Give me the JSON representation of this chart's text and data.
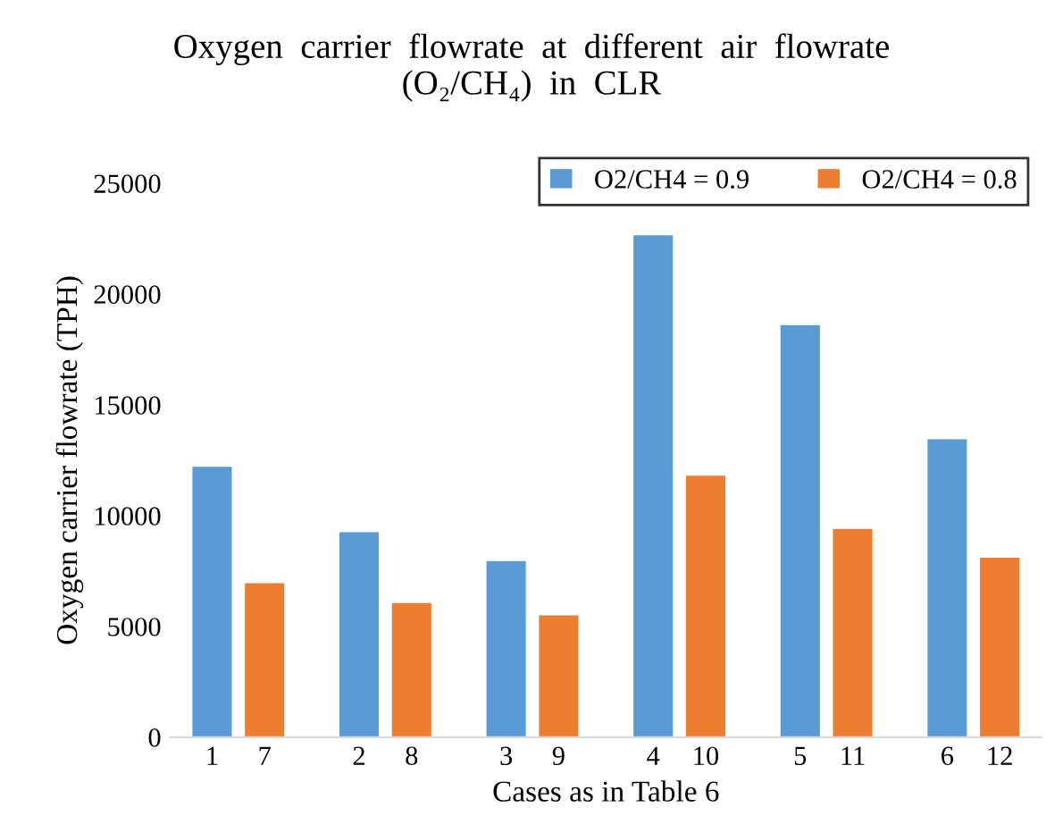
{
  "chart_data": {
    "type": "bar",
    "title": "Oxygen  carrier  flowrate  at  different  air  flowrate\n(O₂/CH₄)  in  CLR",
    "xlabel": "Cases as in Table 6",
    "ylabel": "Oxygen carrier flowrate (TPH)",
    "categories": [
      "1",
      "7",
      "2",
      "8",
      "3",
      "9",
      "4",
      "10",
      "5",
      "11",
      "6",
      "12"
    ],
    "series": [
      {
        "name": "O2/CH4 = 0.9",
        "color": "#5b9bd5",
        "values": [
          12200,
          null,
          9250,
          null,
          7950,
          null,
          22650,
          null,
          18600,
          null,
          13450,
          null
        ]
      },
      {
        "name": "O2/CH4 = 0.8",
        "color": "#ed7d31",
        "values": [
          null,
          6950,
          null,
          6050,
          null,
          5500,
          null,
          11800,
          null,
          9400,
          null,
          8100
        ]
      }
    ],
    "ylim": [
      0,
      25000
    ],
    "yticks": [
      0,
      5000,
      10000,
      15000,
      20000,
      25000
    ],
    "grid": false,
    "legend": "top right"
  }
}
